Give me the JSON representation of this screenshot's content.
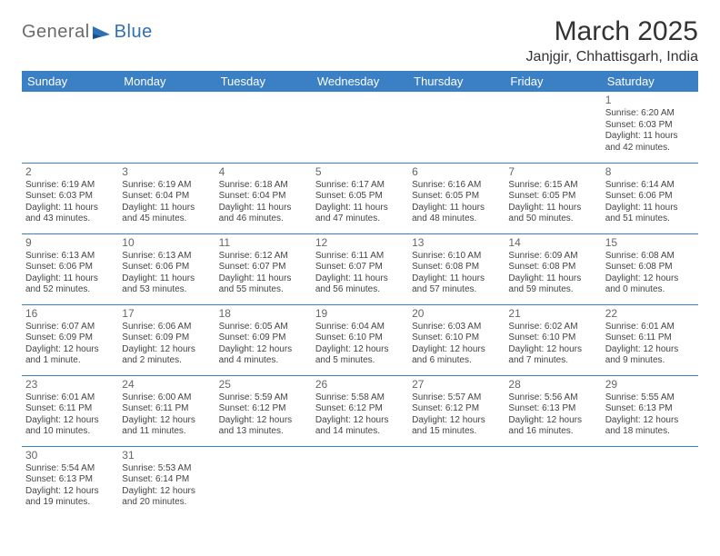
{
  "logo": {
    "text_a": "General",
    "text_b": "Blue"
  },
  "title": "March 2025",
  "location": "Janjgir, Chhattisgarh, India",
  "colors": {
    "header_bg": "#3b7fc4",
    "header_text": "#ffffff",
    "border": "#3b7fc4",
    "logo_gray": "#6b6b6b",
    "logo_blue": "#2f6fb3"
  },
  "day_headers": [
    "Sunday",
    "Monday",
    "Tuesday",
    "Wednesday",
    "Thursday",
    "Friday",
    "Saturday"
  ],
  "weeks": [
    [
      null,
      null,
      null,
      null,
      null,
      null,
      {
        "n": "1",
        "sr": "Sunrise: 6:20 AM",
        "ss": "Sunset: 6:03 PM",
        "dl": "Daylight: 11 hours and 42 minutes."
      }
    ],
    [
      {
        "n": "2",
        "sr": "Sunrise: 6:19 AM",
        "ss": "Sunset: 6:03 PM",
        "dl": "Daylight: 11 hours and 43 minutes."
      },
      {
        "n": "3",
        "sr": "Sunrise: 6:19 AM",
        "ss": "Sunset: 6:04 PM",
        "dl": "Daylight: 11 hours and 45 minutes."
      },
      {
        "n": "4",
        "sr": "Sunrise: 6:18 AM",
        "ss": "Sunset: 6:04 PM",
        "dl": "Daylight: 11 hours and 46 minutes."
      },
      {
        "n": "5",
        "sr": "Sunrise: 6:17 AM",
        "ss": "Sunset: 6:05 PM",
        "dl": "Daylight: 11 hours and 47 minutes."
      },
      {
        "n": "6",
        "sr": "Sunrise: 6:16 AM",
        "ss": "Sunset: 6:05 PM",
        "dl": "Daylight: 11 hours and 48 minutes."
      },
      {
        "n": "7",
        "sr": "Sunrise: 6:15 AM",
        "ss": "Sunset: 6:05 PM",
        "dl": "Daylight: 11 hours and 50 minutes."
      },
      {
        "n": "8",
        "sr": "Sunrise: 6:14 AM",
        "ss": "Sunset: 6:06 PM",
        "dl": "Daylight: 11 hours and 51 minutes."
      }
    ],
    [
      {
        "n": "9",
        "sr": "Sunrise: 6:13 AM",
        "ss": "Sunset: 6:06 PM",
        "dl": "Daylight: 11 hours and 52 minutes."
      },
      {
        "n": "10",
        "sr": "Sunrise: 6:13 AM",
        "ss": "Sunset: 6:06 PM",
        "dl": "Daylight: 11 hours and 53 minutes."
      },
      {
        "n": "11",
        "sr": "Sunrise: 6:12 AM",
        "ss": "Sunset: 6:07 PM",
        "dl": "Daylight: 11 hours and 55 minutes."
      },
      {
        "n": "12",
        "sr": "Sunrise: 6:11 AM",
        "ss": "Sunset: 6:07 PM",
        "dl": "Daylight: 11 hours and 56 minutes."
      },
      {
        "n": "13",
        "sr": "Sunrise: 6:10 AM",
        "ss": "Sunset: 6:08 PM",
        "dl": "Daylight: 11 hours and 57 minutes."
      },
      {
        "n": "14",
        "sr": "Sunrise: 6:09 AM",
        "ss": "Sunset: 6:08 PM",
        "dl": "Daylight: 11 hours and 59 minutes."
      },
      {
        "n": "15",
        "sr": "Sunrise: 6:08 AM",
        "ss": "Sunset: 6:08 PM",
        "dl": "Daylight: 12 hours and 0 minutes."
      }
    ],
    [
      {
        "n": "16",
        "sr": "Sunrise: 6:07 AM",
        "ss": "Sunset: 6:09 PM",
        "dl": "Daylight: 12 hours and 1 minute."
      },
      {
        "n": "17",
        "sr": "Sunrise: 6:06 AM",
        "ss": "Sunset: 6:09 PM",
        "dl": "Daylight: 12 hours and 2 minutes."
      },
      {
        "n": "18",
        "sr": "Sunrise: 6:05 AM",
        "ss": "Sunset: 6:09 PM",
        "dl": "Daylight: 12 hours and 4 minutes."
      },
      {
        "n": "19",
        "sr": "Sunrise: 6:04 AM",
        "ss": "Sunset: 6:10 PM",
        "dl": "Daylight: 12 hours and 5 minutes."
      },
      {
        "n": "20",
        "sr": "Sunrise: 6:03 AM",
        "ss": "Sunset: 6:10 PM",
        "dl": "Daylight: 12 hours and 6 minutes."
      },
      {
        "n": "21",
        "sr": "Sunrise: 6:02 AM",
        "ss": "Sunset: 6:10 PM",
        "dl": "Daylight: 12 hours and 7 minutes."
      },
      {
        "n": "22",
        "sr": "Sunrise: 6:01 AM",
        "ss": "Sunset: 6:11 PM",
        "dl": "Daylight: 12 hours and 9 minutes."
      }
    ],
    [
      {
        "n": "23",
        "sr": "Sunrise: 6:01 AM",
        "ss": "Sunset: 6:11 PM",
        "dl": "Daylight: 12 hours and 10 minutes."
      },
      {
        "n": "24",
        "sr": "Sunrise: 6:00 AM",
        "ss": "Sunset: 6:11 PM",
        "dl": "Daylight: 12 hours and 11 minutes."
      },
      {
        "n": "25",
        "sr": "Sunrise: 5:59 AM",
        "ss": "Sunset: 6:12 PM",
        "dl": "Daylight: 12 hours and 13 minutes."
      },
      {
        "n": "26",
        "sr": "Sunrise: 5:58 AM",
        "ss": "Sunset: 6:12 PM",
        "dl": "Daylight: 12 hours and 14 minutes."
      },
      {
        "n": "27",
        "sr": "Sunrise: 5:57 AM",
        "ss": "Sunset: 6:12 PM",
        "dl": "Daylight: 12 hours and 15 minutes."
      },
      {
        "n": "28",
        "sr": "Sunrise: 5:56 AM",
        "ss": "Sunset: 6:13 PM",
        "dl": "Daylight: 12 hours and 16 minutes."
      },
      {
        "n": "29",
        "sr": "Sunrise: 5:55 AM",
        "ss": "Sunset: 6:13 PM",
        "dl": "Daylight: 12 hours and 18 minutes."
      }
    ],
    [
      {
        "n": "30",
        "sr": "Sunrise: 5:54 AM",
        "ss": "Sunset: 6:13 PM",
        "dl": "Daylight: 12 hours and 19 minutes."
      },
      {
        "n": "31",
        "sr": "Sunrise: 5:53 AM",
        "ss": "Sunset: 6:14 PM",
        "dl": "Daylight: 12 hours and 20 minutes."
      },
      null,
      null,
      null,
      null,
      null
    ]
  ]
}
